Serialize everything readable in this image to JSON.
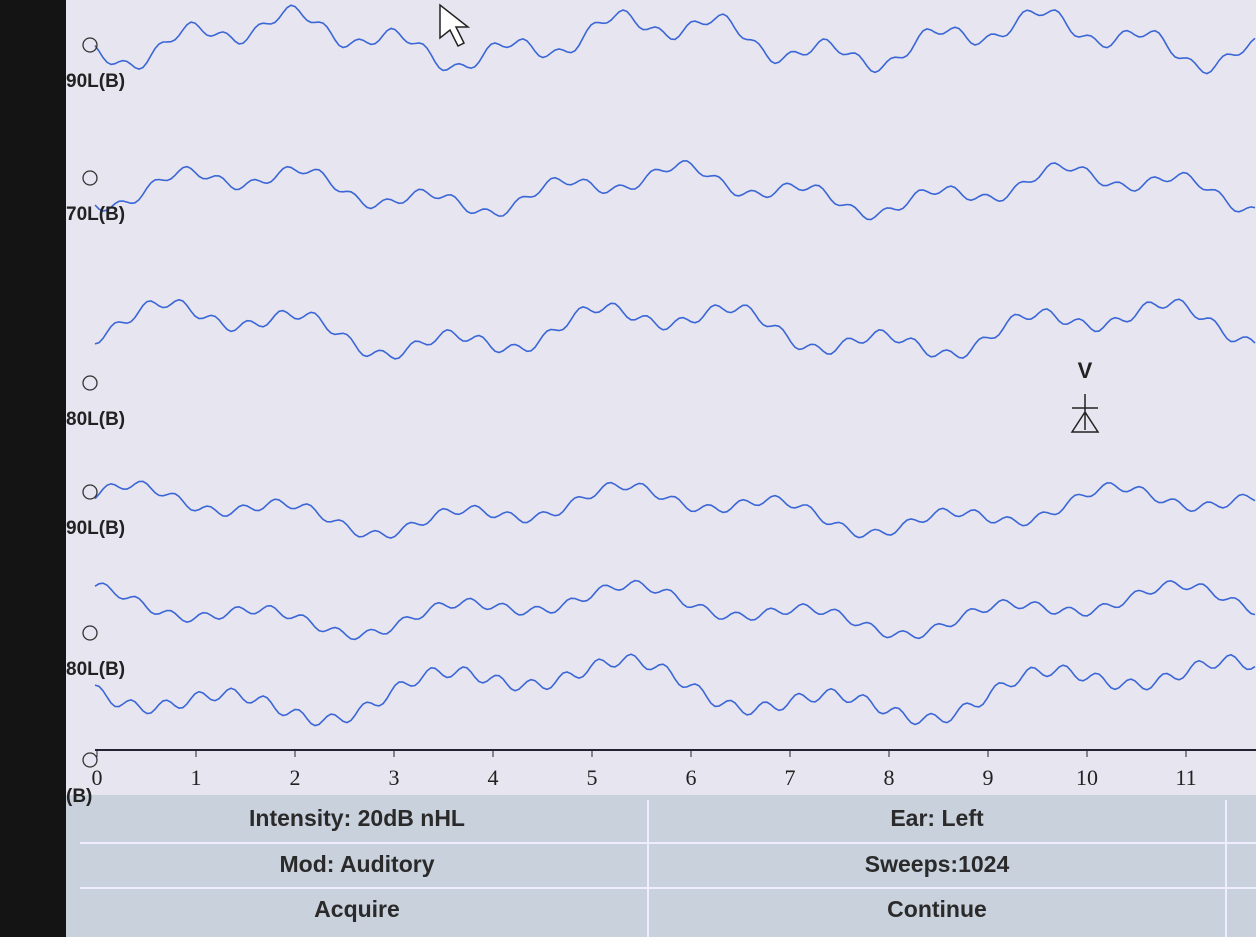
{
  "traces": [
    {
      "label": "90L(B)"
    },
    {
      "label": "70L(B)"
    },
    {
      "label": "80L(B)"
    },
    {
      "label": "90L(B)"
    },
    {
      "label": "80L(B)"
    },
    {
      "label": "(B)"
    }
  ],
  "peak_marker": "V",
  "x_axis": {
    "ticks": [
      0,
      1,
      2,
      3,
      4,
      5,
      6,
      7,
      8,
      9,
      10,
      11
    ]
  },
  "status_panel": {
    "rows": [
      [
        "Intensity: 20dB nHL",
        "Ear: Left"
      ],
      [
        "Mod: Auditory",
        "Sweeps:1024"
      ],
      [
        "Acquire",
        "Continue"
      ]
    ]
  }
}
